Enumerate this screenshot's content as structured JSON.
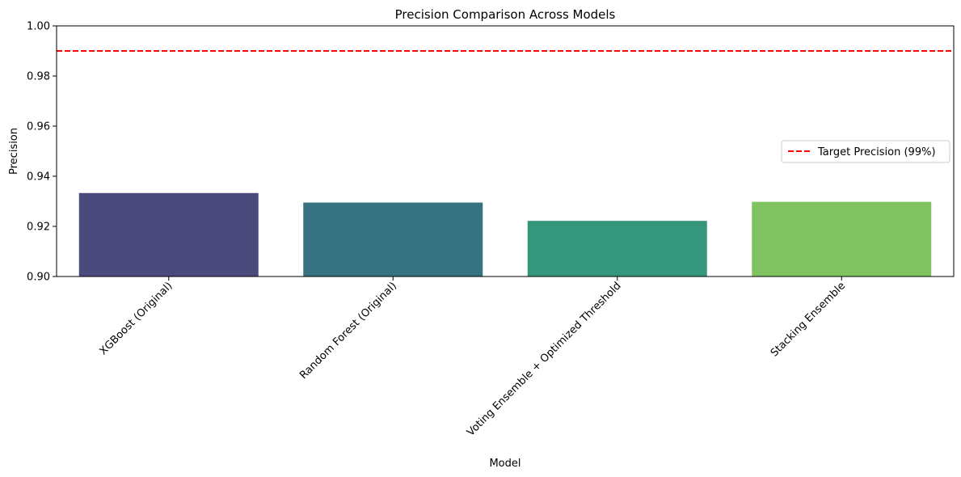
{
  "chart_data": {
    "type": "bar",
    "title": "Precision Comparison Across Models",
    "xlabel": "Model",
    "ylabel": "Precision",
    "ylim": [
      0.9,
      1.0
    ],
    "yticks": [
      "0.90",
      "0.92",
      "0.94",
      "0.96",
      "0.98",
      "1.00"
    ],
    "categories": [
      "XGBoost (Original)",
      "Random Forest (Original)",
      "Voting Ensemble + Optimized Threshold",
      "Stacking Ensemble"
    ],
    "values": [
      0.9333,
      0.9295,
      0.9222,
      0.9298
    ],
    "bar_colors": [
      "#4a4b7c",
      "#36727f",
      "#34977b",
      "#80c260"
    ],
    "target_line": {
      "value": 0.99,
      "label": "Target Precision (99%)",
      "color": "#ff0000",
      "style": "dashed"
    },
    "legend_position": "center-right",
    "grid": false
  }
}
